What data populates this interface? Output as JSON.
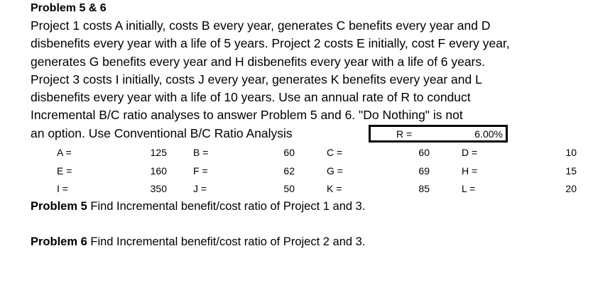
{
  "heading": "Problem 5 & 6",
  "paragraph_lines": [
    "Project 1 costs A initially, costs B every year, generates C benefits every year and D",
    "disbenefits every year with a life of 5 years. Project 2 costs E initially, cost F every year,",
    "generates G benefits every year and H disbenefits every year with a life of 6 years.",
    "Project 3 costs I initially, costs J every year, generates K benefits every year and L",
    "disbenefits every year with a life of 10 years. Use an annual rate of R to conduct",
    "Incremental B/C ratio analyses to answer Problem 5 and 6. \"Do Nothing\" is not",
    "an option. Use Conventional B/C Ratio Analysis"
  ],
  "rate": {
    "label": "R =",
    "value": "6.00%"
  },
  "table": {
    "rows": [
      {
        "l1": "A =",
        "v1": "125",
        "l2": "B =",
        "v2": "60",
        "l3": "C =",
        "v3": "60",
        "l4": "D =",
        "v4": "10"
      },
      {
        "l1": "E =",
        "v1": "160",
        "l2": "F =",
        "v2": "62",
        "l3": "G =",
        "v3": "69",
        "l4": "H =",
        "v4": "15"
      },
      {
        "l1": "I =",
        "v1": "350",
        "l2": "J =",
        "v2": "50",
        "l3": "K =",
        "v3": "85",
        "l4": "L =",
        "v4": "20"
      }
    ]
  },
  "problems": [
    {
      "label": "Problem 5",
      "text": " Find Incremental benefit/cost ratio of Project 1 and 3."
    },
    {
      "label": "Problem 6",
      "text": " Find Incremental benefit/cost ratio of Project 2 and 3."
    }
  ]
}
